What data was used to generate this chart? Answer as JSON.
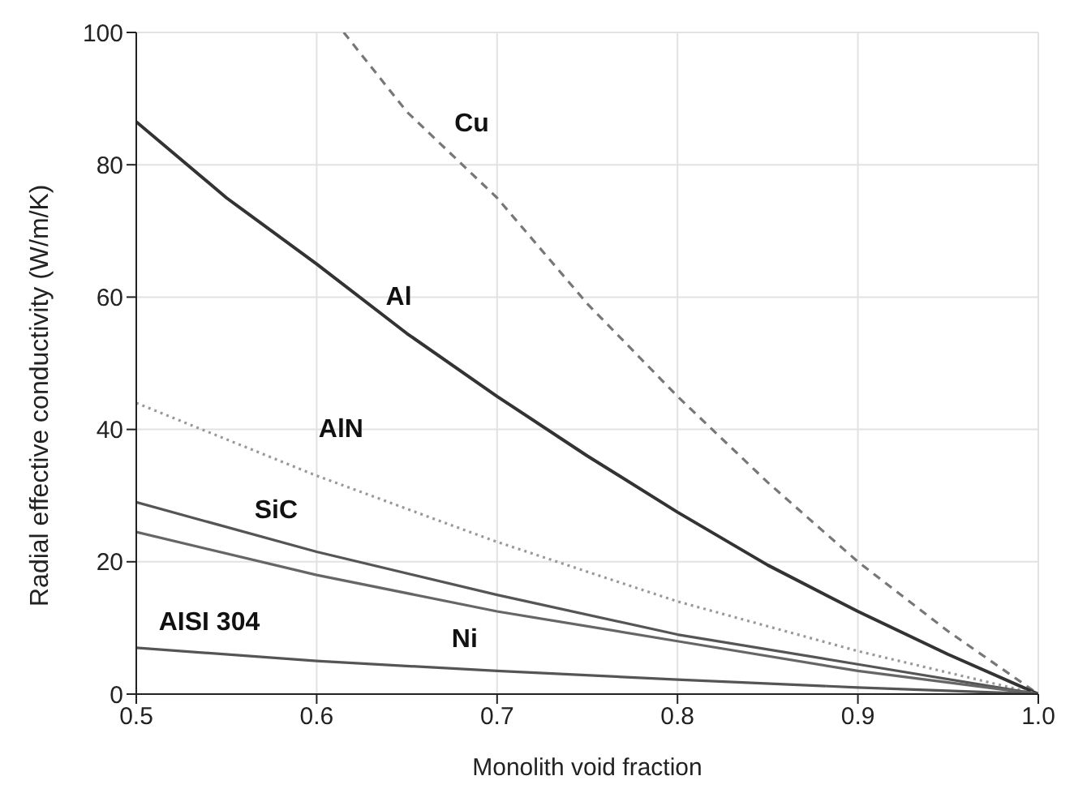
{
  "chart_data": {
    "type": "line",
    "xlabel": "Monolith void fraction",
    "ylabel": "Radial effective conductivity (W/m/K)",
    "xlim": [
      0.5,
      1.0
    ],
    "ylim": [
      0,
      100
    ],
    "xticks": [
      {
        "value": 0.5,
        "label": "0.5"
      },
      {
        "value": 0.6,
        "label": "0.6"
      },
      {
        "value": 0.7,
        "label": "0.7"
      },
      {
        "value": 0.8,
        "label": "0.8"
      },
      {
        "value": 0.9,
        "label": "0.9"
      },
      {
        "value": 1.0,
        "label": "1.0"
      }
    ],
    "yticks": [
      0,
      20,
      40,
      60,
      80,
      100
    ],
    "grid": true,
    "legend": false,
    "marker": "none",
    "series": [
      {
        "name": "Cu",
        "color": "#777777",
        "line_style": "dashed",
        "x": [
          0.615,
          0.65,
          0.7,
          0.75,
          0.8,
          0.85,
          0.9,
          0.95,
          1.0
        ],
        "values": [
          100,
          88,
          75,
          59,
          45,
          32,
          20,
          9.5,
          0
        ]
      },
      {
        "name": "Al",
        "color": "#333333",
        "line_style": "solid",
        "x": [
          0.5,
          0.55,
          0.6,
          0.65,
          0.7,
          0.75,
          0.8,
          0.85,
          0.9,
          0.95,
          1.0
        ],
        "values": [
          86.5,
          75,
          65,
          54.5,
          45,
          36,
          27.5,
          19.5,
          12.5,
          6,
          0
        ]
      },
      {
        "name": "AlN",
        "color": "#999999",
        "line_style": "dotted",
        "x": [
          0.5,
          0.6,
          0.7,
          0.8,
          0.9,
          1.0
        ],
        "values": [
          44,
          33,
          23,
          14,
          6.5,
          0
        ]
      },
      {
        "name": "SiC",
        "color": "#555555",
        "line_style": "solid",
        "x": [
          0.5,
          0.6,
          0.7,
          0.8,
          0.9,
          1.0
        ],
        "values": [
          29,
          21.5,
          15,
          9,
          4.5,
          0
        ]
      },
      {
        "name": "Ni",
        "color": "#666666",
        "line_style": "solid",
        "x": [
          0.5,
          0.6,
          0.7,
          0.8,
          0.9,
          1.0
        ],
        "values": [
          24.5,
          18,
          12.5,
          8,
          3.5,
          0
        ]
      },
      {
        "name": "AISI 304",
        "color": "#555555",
        "line_style": "solid",
        "x": [
          0.5,
          0.6,
          0.7,
          0.8,
          0.9,
          1.0
        ],
        "values": [
          7,
          5,
          3.5,
          2.2,
          1,
          0
        ]
      }
    ]
  }
}
